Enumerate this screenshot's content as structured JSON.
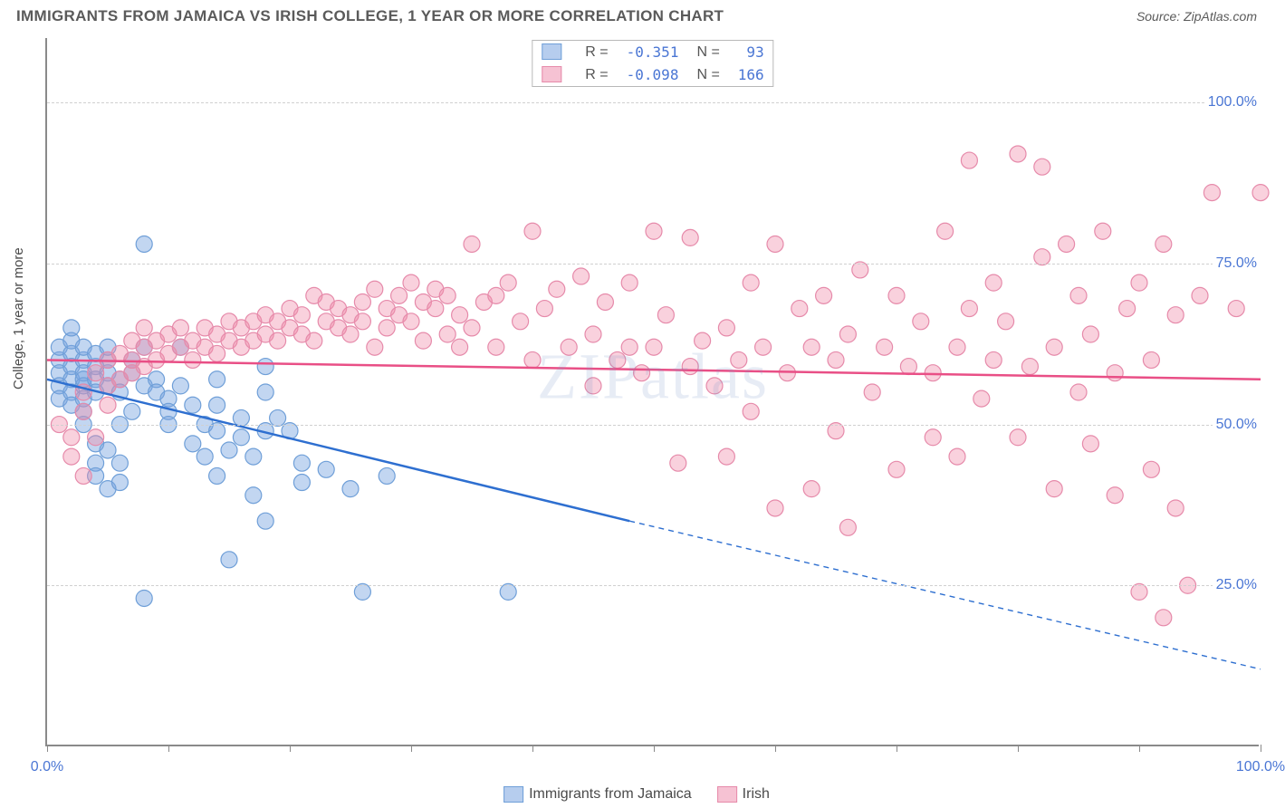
{
  "title": "IMMIGRANTS FROM JAMAICA VS IRISH COLLEGE, 1 YEAR OR MORE CORRELATION CHART",
  "source": "Source: ZipAtlas.com",
  "watermark": "ZIPatlas",
  "y_axis_title": "College, 1 year or more",
  "chart": {
    "type": "scatter",
    "xlim": [
      0,
      100
    ],
    "ylim": [
      0,
      110
    ],
    "x_ticks": [
      0,
      10,
      20,
      30,
      40,
      50,
      60,
      70,
      80,
      90,
      100
    ],
    "x_tick_labels": {
      "0": "0.0%",
      "100": "100.0%"
    },
    "y_grid": [
      25,
      50,
      75,
      100
    ],
    "y_tick_labels": {
      "25": "25.0%",
      "50": "50.0%",
      "75": "75.0%",
      "100": "100.0%"
    },
    "background_color": "#ffffff",
    "grid_color": "#d0d0d0",
    "axis_color": "#8a8a8a",
    "marker_radius": 9,
    "marker_stroke_width": 1.2,
    "trend_line_width": 2.5,
    "series": [
      {
        "name": "Immigrants from Jamaica",
        "short": "jamaica",
        "R": "-0.351",
        "N": "93",
        "fill_color": "rgba(120,165,225,0.45)",
        "stroke_color": "#6f9fd8",
        "swatch_fill": "#b6cdee",
        "swatch_border": "#6f9fd8",
        "trend_color": "#2e6fd0",
        "trend": {
          "x1": 0,
          "y1": 57,
          "x2_solid": 48,
          "y2_solid": 35,
          "x2": 100,
          "y2": 12
        },
        "points": [
          [
            1,
            60
          ],
          [
            1,
            58
          ],
          [
            1,
            62
          ],
          [
            1,
            56
          ],
          [
            1,
            54
          ],
          [
            2,
            61
          ],
          [
            2,
            59
          ],
          [
            2,
            57
          ],
          [
            2,
            63
          ],
          [
            2,
            55
          ],
          [
            2,
            53
          ],
          [
            2,
            65
          ],
          [
            3,
            60
          ],
          [
            3,
            58
          ],
          [
            3,
            56
          ],
          [
            3,
            62
          ],
          [
            3,
            57
          ],
          [
            3,
            54
          ],
          [
            3,
            52
          ],
          [
            3,
            50
          ],
          [
            4,
            59
          ],
          [
            4,
            61
          ],
          [
            4,
            57
          ],
          [
            4,
            55
          ],
          [
            4,
            47
          ],
          [
            4,
            44
          ],
          [
            4,
            42
          ],
          [
            5,
            58
          ],
          [
            5,
            56
          ],
          [
            5,
            60
          ],
          [
            5,
            62
          ],
          [
            5,
            46
          ],
          [
            5,
            40
          ],
          [
            6,
            57
          ],
          [
            6,
            55
          ],
          [
            6,
            50
          ],
          [
            6,
            44
          ],
          [
            6,
            41
          ],
          [
            7,
            58
          ],
          [
            7,
            60
          ],
          [
            7,
            52
          ],
          [
            8,
            56
          ],
          [
            8,
            78
          ],
          [
            8,
            62
          ],
          [
            8,
            23
          ],
          [
            9,
            57
          ],
          [
            9,
            55
          ],
          [
            10,
            54
          ],
          [
            10,
            52
          ],
          [
            10,
            50
          ],
          [
            11,
            56
          ],
          [
            11,
            62
          ],
          [
            12,
            53
          ],
          [
            12,
            47
          ],
          [
            13,
            50
          ],
          [
            13,
            45
          ],
          [
            14,
            53
          ],
          [
            14,
            57
          ],
          [
            14,
            49
          ],
          [
            14,
            42
          ],
          [
            15,
            46
          ],
          [
            15,
            29
          ],
          [
            16,
            51
          ],
          [
            16,
            48
          ],
          [
            17,
            45
          ],
          [
            17,
            39
          ],
          [
            18,
            55
          ],
          [
            18,
            59
          ],
          [
            18,
            49
          ],
          [
            18,
            35
          ],
          [
            19,
            51
          ],
          [
            20,
            49
          ],
          [
            21,
            41
          ],
          [
            21,
            44
          ],
          [
            23,
            43
          ],
          [
            25,
            40
          ],
          [
            26,
            24
          ],
          [
            28,
            42
          ],
          [
            38,
            24
          ]
        ]
      },
      {
        "name": "Irish",
        "short": "irish",
        "R": "-0.098",
        "N": "166",
        "fill_color": "rgba(240,140,170,0.40)",
        "stroke_color": "#e68aaa",
        "swatch_fill": "#f6c2d3",
        "swatch_border": "#e68aaa",
        "trend_color": "#e94f86",
        "trend": {
          "x1": 0,
          "y1": 60,
          "x2_solid": 100,
          "y2_solid": 57,
          "x2": 100,
          "y2": 57
        },
        "points": [
          [
            1,
            50
          ],
          [
            2,
            45
          ],
          [
            2,
            48
          ],
          [
            3,
            42
          ],
          [
            3,
            52
          ],
          [
            3,
            55
          ],
          [
            4,
            48
          ],
          [
            4,
            58
          ],
          [
            5,
            53
          ],
          [
            5,
            56
          ],
          [
            5,
            60
          ],
          [
            6,
            57
          ],
          [
            6,
            61
          ],
          [
            7,
            58
          ],
          [
            7,
            60
          ],
          [
            7,
            63
          ],
          [
            8,
            59
          ],
          [
            8,
            62
          ],
          [
            8,
            65
          ],
          [
            9,
            60
          ],
          [
            9,
            63
          ],
          [
            10,
            61
          ],
          [
            10,
            64
          ],
          [
            11,
            62
          ],
          [
            11,
            65
          ],
          [
            12,
            60
          ],
          [
            12,
            63
          ],
          [
            13,
            62
          ],
          [
            13,
            65
          ],
          [
            14,
            61
          ],
          [
            14,
            64
          ],
          [
            15,
            63
          ],
          [
            15,
            66
          ],
          [
            16,
            62
          ],
          [
            16,
            65
          ],
          [
            17,
            63
          ],
          [
            17,
            66
          ],
          [
            18,
            64
          ],
          [
            18,
            67
          ],
          [
            19,
            63
          ],
          [
            19,
            66
          ],
          [
            20,
            65
          ],
          [
            20,
            68
          ],
          [
            21,
            64
          ],
          [
            21,
            67
          ],
          [
            22,
            63
          ],
          [
            22,
            70
          ],
          [
            23,
            66
          ],
          [
            23,
            69
          ],
          [
            24,
            65
          ],
          [
            24,
            68
          ],
          [
            25,
            67
          ],
          [
            25,
            64
          ],
          [
            26,
            66
          ],
          [
            26,
            69
          ],
          [
            27,
            62
          ],
          [
            27,
            71
          ],
          [
            28,
            65
          ],
          [
            28,
            68
          ],
          [
            29,
            67
          ],
          [
            29,
            70
          ],
          [
            30,
            66
          ],
          [
            30,
            72
          ],
          [
            31,
            63
          ],
          [
            31,
            69
          ],
          [
            32,
            68
          ],
          [
            32,
            71
          ],
          [
            33,
            64
          ],
          [
            33,
            70
          ],
          [
            34,
            67
          ],
          [
            34,
            62
          ],
          [
            35,
            78
          ],
          [
            35,
            65
          ],
          [
            36,
            69
          ],
          [
            37,
            70
          ],
          [
            37,
            62
          ],
          [
            38,
            72
          ],
          [
            39,
            66
          ],
          [
            40,
            80
          ],
          [
            40,
            60
          ],
          [
            41,
            68
          ],
          [
            42,
            71
          ],
          [
            43,
            62
          ],
          [
            44,
            73
          ],
          [
            45,
            56
          ],
          [
            45,
            64
          ],
          [
            46,
            69
          ],
          [
            47,
            60
          ],
          [
            48,
            62
          ],
          [
            48,
            72
          ],
          [
            49,
            58
          ],
          [
            50,
            62
          ],
          [
            50,
            80
          ],
          [
            51,
            67
          ],
          [
            52,
            44
          ],
          [
            53,
            59
          ],
          [
            53,
            79
          ],
          [
            54,
            63
          ],
          [
            55,
            56
          ],
          [
            56,
            65
          ],
          [
            56,
            45
          ],
          [
            57,
            60
          ],
          [
            58,
            72
          ],
          [
            58,
            52
          ],
          [
            59,
            62
          ],
          [
            60,
            37
          ],
          [
            60,
            78
          ],
          [
            61,
            58
          ],
          [
            62,
            68
          ],
          [
            63,
            40
          ],
          [
            63,
            62
          ],
          [
            64,
            70
          ],
          [
            65,
            49
          ],
          [
            65,
            60
          ],
          [
            66,
            34
          ],
          [
            66,
            64
          ],
          [
            67,
            74
          ],
          [
            68,
            55
          ],
          [
            69,
            62
          ],
          [
            70,
            43
          ],
          [
            70,
            70
          ],
          [
            71,
            59
          ],
          [
            72,
            66
          ],
          [
            73,
            48
          ],
          [
            73,
            58
          ],
          [
            74,
            80
          ],
          [
            75,
            62
          ],
          [
            75,
            45
          ],
          [
            76,
            91
          ],
          [
            76,
            68
          ],
          [
            77,
            54
          ],
          [
            78,
            60
          ],
          [
            78,
            72
          ],
          [
            79,
            66
          ],
          [
            80,
            92
          ],
          [
            80,
            48
          ],
          [
            81,
            59
          ],
          [
            82,
            76
          ],
          [
            82,
            90
          ],
          [
            83,
            40
          ],
          [
            83,
            62
          ],
          [
            84,
            78
          ],
          [
            85,
            55
          ],
          [
            85,
            70
          ],
          [
            86,
            47
          ],
          [
            86,
            64
          ],
          [
            87,
            80
          ],
          [
            88,
            58
          ],
          [
            88,
            39
          ],
          [
            89,
            68
          ],
          [
            90,
            24
          ],
          [
            90,
            72
          ],
          [
            91,
            43
          ],
          [
            91,
            60
          ],
          [
            92,
            78
          ],
          [
            92,
            20
          ],
          [
            93,
            37
          ],
          [
            93,
            67
          ],
          [
            94,
            25
          ],
          [
            95,
            70
          ],
          [
            96,
            86
          ],
          [
            98,
            68
          ],
          [
            100,
            86
          ]
        ]
      }
    ]
  },
  "legend_bottom": [
    {
      "key": "jamaica",
      "label": "Immigrants from Jamaica"
    },
    {
      "key": "irish",
      "label": "Irish"
    }
  ]
}
